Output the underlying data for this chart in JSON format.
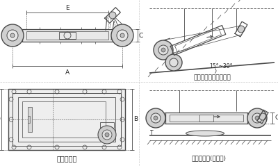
{
  "bg_color": "#ffffff",
  "line_color": "#4a4a4a",
  "dim_color": "#4a4a4a",
  "text_color": "#222222",
  "labels": {
    "bottom_left": "外形尺寸图",
    "top_right": "安装示意图（倾斜式）",
    "top_right_angle": "15°~30°",
    "bottom_right": "安装示意图(水平式)"
  }
}
